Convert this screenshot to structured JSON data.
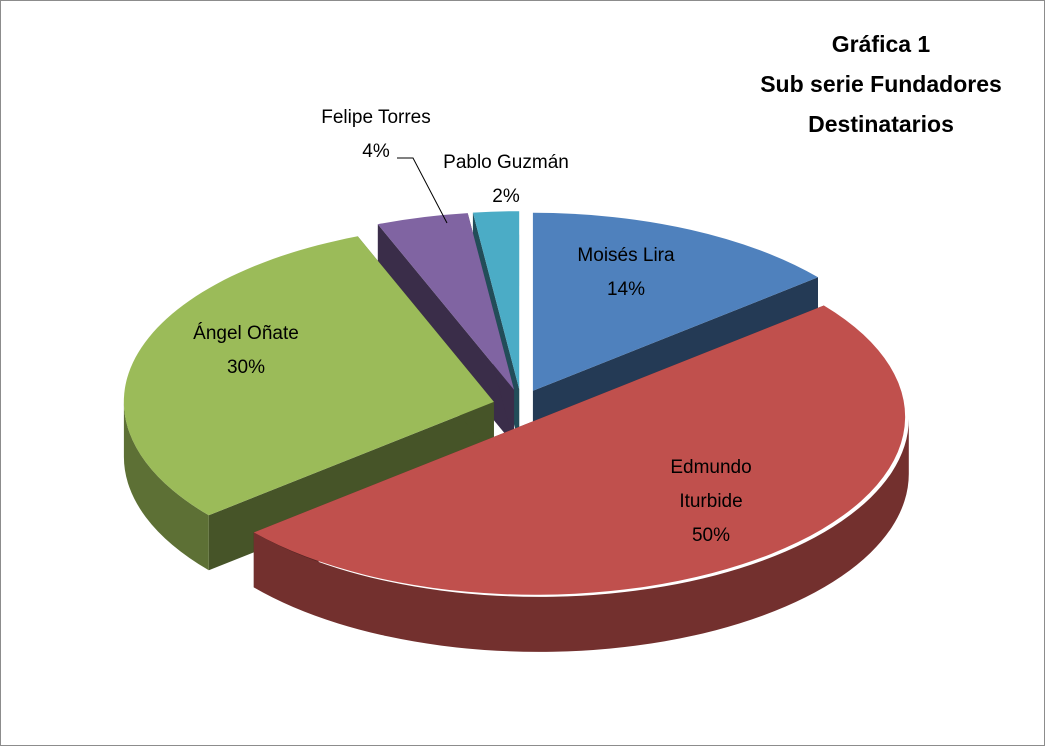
{
  "chart_data": {
    "type": "pie3d",
    "title": [
      "Gráfica 1",
      "Sub serie Fundadores",
      "Destinatarios"
    ],
    "categories": [
      "Moisés Lira",
      "Edmundo Iturbide",
      "Ángel Oñate",
      "Felipe Torres",
      "Pablo Guzmán"
    ],
    "values": [
      14,
      50,
      30,
      4,
      2
    ],
    "value_labels": [
      "14%",
      "50%",
      "30%",
      "4%",
      "2%"
    ],
    "colors": [
      "#4f81bd",
      "#c0504d",
      "#9bbb59",
      "#8064a2",
      "#4bacc6"
    ]
  }
}
